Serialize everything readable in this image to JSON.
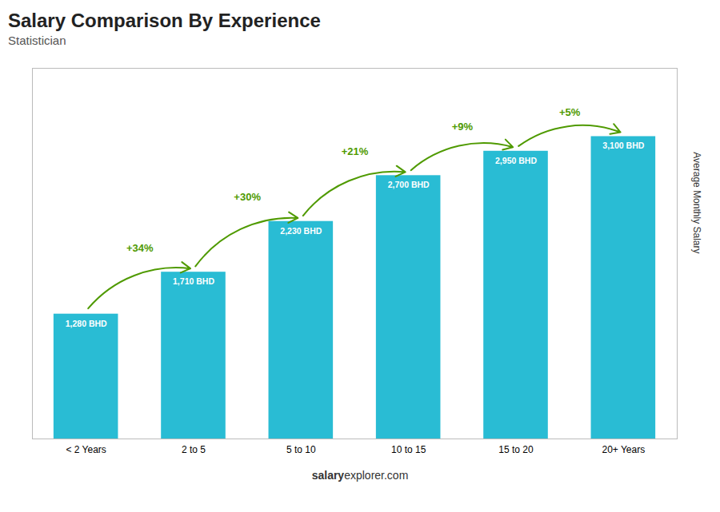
{
  "chart_data": {
    "type": "bar",
    "title": "Salary Comparison By Experience",
    "subtitle": "Statistician",
    "categories": [
      "< 2 Years",
      "2 to 5",
      "5 to 10",
      "10 to 15",
      "15 to 20",
      "20+ Years"
    ],
    "values": [
      1280,
      1710,
      2230,
      2700,
      2950,
      3100
    ],
    "value_labels": [
      "1,280 BHD",
      "1,710 BHD",
      "2,230 BHD",
      "2,700 BHD",
      "2,950 BHD",
      "3,100 BHD"
    ],
    "annotations": [
      "+34%",
      "+30%",
      "+21%",
      "+9%",
      "+5%"
    ],
    "ylabel": "Average Monthly Salary",
    "footer": [
      "salary",
      "explorer.com"
    ],
    "color": "#29bcd4",
    "ylim": [
      0,
      3800
    ],
    "data_labels": true,
    "tick_labels": "x"
  }
}
